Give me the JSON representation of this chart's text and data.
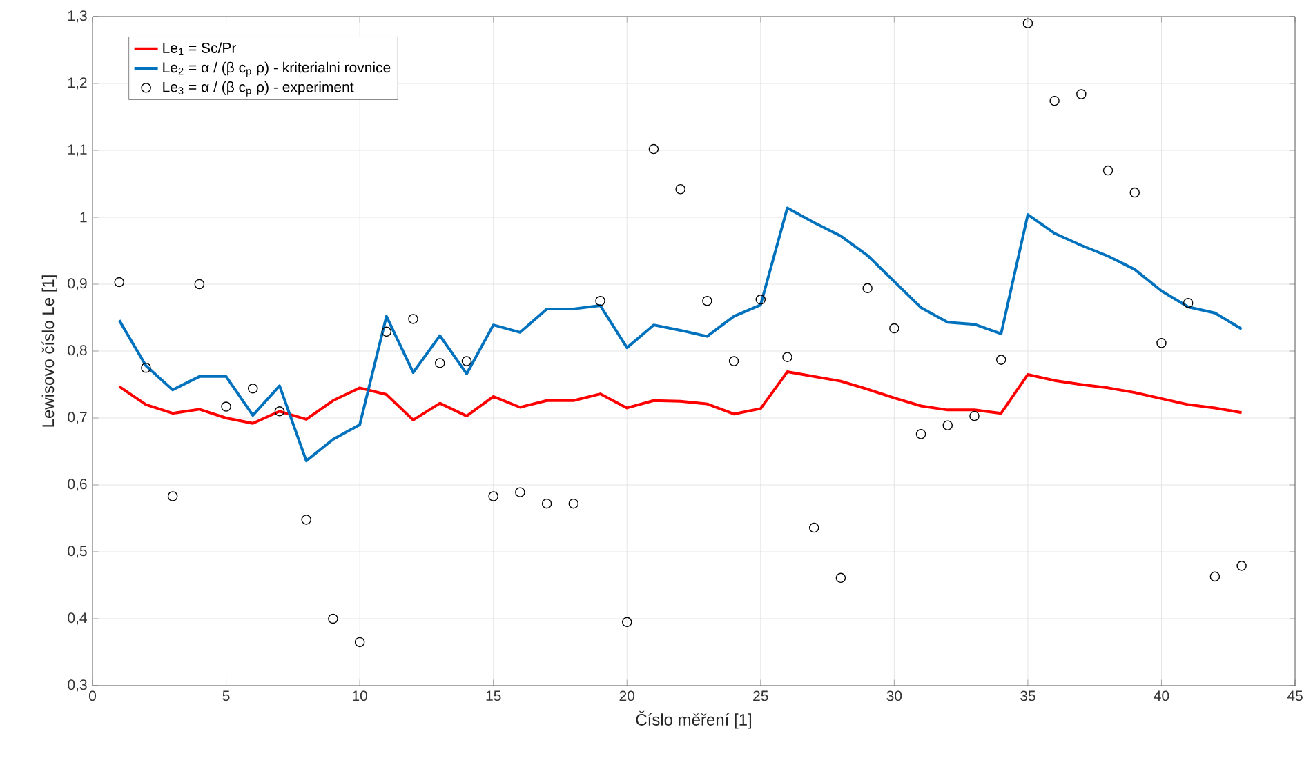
{
  "chart_data": {
    "type": "line",
    "xlabel": "Číslo měření [1]",
    "ylabel": "Lewisovo číslo Le [1]",
    "x": [
      1,
      2,
      3,
      4,
      5,
      6,
      7,
      8,
      9,
      10,
      11,
      12,
      13,
      14,
      15,
      16,
      17,
      18,
      19,
      20,
      21,
      22,
      23,
      24,
      25,
      26,
      27,
      28,
      29,
      30,
      31,
      32,
      33,
      34,
      35,
      36,
      37,
      38,
      39,
      40,
      41,
      42,
      43
    ],
    "series": [
      {
        "name": "Le$_{1}$ = Sc/Pr",
        "marker": "none",
        "color": "#ff0000",
        "values": [
          0.747,
          0.72,
          0.707,
          0.713,
          0.7,
          0.692,
          0.71,
          0.698,
          0.726,
          0.745,
          0.735,
          0.697,
          0.722,
          0.703,
          0.732,
          0.716,
          0.726,
          0.726,
          0.736,
          0.715,
          0.726,
          0.725,
          0.721,
          0.706,
          0.714,
          0.769,
          0.762,
          0.755,
          0.743,
          0.73,
          0.718,
          0.712,
          0.712,
          0.707,
          0.765,
          0.756,
          0.75,
          0.745,
          0.738,
          0.729,
          0.72,
          0.715,
          0.708
        ]
      },
      {
        "name": "Le$_{2}$ = α / (β c$_{p}$ ρ) - kriterialni rovnice",
        "marker": "none",
        "color": "#0072bd",
        "values": [
          0.846,
          0.778,
          0.742,
          0.762,
          0.762,
          0.704,
          0.748,
          0.636,
          0.668,
          0.69,
          0.852,
          0.768,
          0.823,
          0.766,
          0.839,
          0.828,
          0.863,
          0.863,
          0.868,
          0.805,
          0.839,
          0.831,
          0.822,
          0.852,
          0.869,
          1.014,
          0.992,
          0.972,
          0.943,
          0.904,
          0.865,
          0.843,
          0.84,
          0.826,
          1.004,
          0.976,
          0.958,
          0.942,
          0.922,
          0.89,
          0.866,
          0.857,
          0.833
        ]
      },
      {
        "name": "Le$_{3}$ = α / (β c$_{p}$ ρ) - experiment",
        "type": "scatter",
        "marker": "circle",
        "color": "#000000",
        "values": [
          0.903,
          0.775,
          0.583,
          0.9,
          0.717,
          0.744,
          0.71,
          0.548,
          0.4,
          0.365,
          0.829,
          0.848,
          0.782,
          0.785,
          0.583,
          0.589,
          0.572,
          0.572,
          0.875,
          0.395,
          1.102,
          1.042,
          0.875,
          0.785,
          0.877,
          0.791,
          0.536,
          0.461,
          0.894,
          0.834,
          0.676,
          0.689,
          0.703,
          0.787,
          1.29,
          1.174,
          1.184,
          1.07,
          1.037,
          0.812,
          0.872,
          0.463,
          0.479
        ]
      }
    ],
    "xlim": [
      0,
      45
    ],
    "xticks": [
      0,
      5,
      10,
      15,
      20,
      25,
      30,
      35,
      40,
      45
    ],
    "ylim": [
      0.3,
      1.3
    ],
    "yticks": [
      {
        "value": 0.3,
        "label": "0,3"
      },
      {
        "value": 0.4,
        "label": "0,4"
      },
      {
        "value": 0.5,
        "label": "0,5"
      },
      {
        "value": 0.6,
        "label": "0,6"
      },
      {
        "value": 0.7,
        "label": "0,7"
      },
      {
        "value": 0.8,
        "label": "0,8"
      },
      {
        "value": 0.9,
        "label": "0,9"
      },
      {
        "value": 1,
        "label": "1"
      },
      {
        "value": 1.1,
        "label": "1,1"
      },
      {
        "value": 1.2,
        "label": "1,2"
      },
      {
        "value": 1.3,
        "label": "1,3"
      }
    ],
    "grid": true,
    "legend": "top left"
  }
}
